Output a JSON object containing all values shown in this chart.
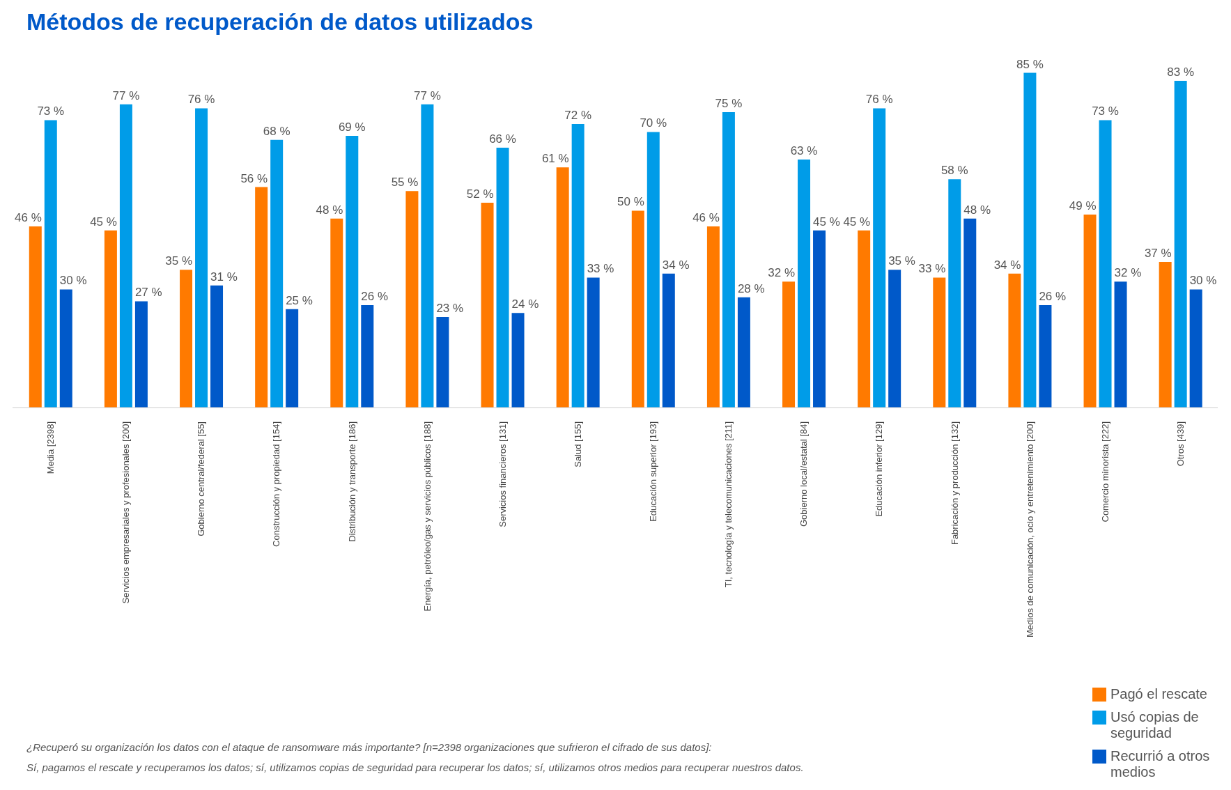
{
  "chart_data": {
    "type": "bar",
    "title": "Métodos de recuperación de datos utilizados",
    "categories": [
      "Media [2398]",
      "Servicios empresariales y profesionales [200]",
      "Gobierno central/federal [55]",
      "Construcción y propiedad [154]",
      "Distribución y transporte [186]",
      "Energía, petróleo/gas y servicios públicos [188]",
      "Servicios financieros [131]",
      "Salud [155]",
      "Educación superior [193]",
      "TI, tecnología y telecomunicaciones [211]",
      "Gobierno local/estatal [84]",
      "Educación inferior [129]",
      "Fabricación y producción [132]",
      "Medios de comunicación, ocio y entretenimiento [200]",
      "Comercio minorista [222]",
      "Otros [439]"
    ],
    "series": [
      {
        "name": "Pagó el rescate",
        "color": "#ff7a00",
        "values": [
          46,
          45,
          35,
          56,
          48,
          55,
          52,
          61,
          50,
          46,
          32,
          45,
          33,
          34,
          49,
          37
        ],
        "value_labels": [
          "46 %",
          "45 %",
          "35 %",
          "56 %",
          "48 %",
          "55 %",
          "52 %",
          "61 %",
          "50 %",
          "46 %",
          "32 %",
          "45 %",
          "33 %",
          "34 %",
          "49 %",
          "37 %"
        ]
      },
      {
        "name": "Usó copias de seguridad",
        "color": "#009ce8",
        "values": [
          73,
          77,
          76,
          68,
          69,
          77,
          66,
          72,
          70,
          75,
          63,
          76,
          58,
          85,
          73,
          83
        ],
        "value_labels": [
          "73 %",
          "77 %",
          "76 %",
          "68 %",
          "69 %",
          "77 %",
          "66 %",
          "72 %",
          "70 %",
          "75 %",
          "63 %",
          "76 %",
          "58 %",
          "85 %",
          "73 %",
          "83 %"
        ]
      },
      {
        "name": "Recurrió a otros medios",
        "color": "#0059c9",
        "values": [
          30,
          27,
          31,
          25,
          26,
          23,
          24,
          33,
          34,
          28,
          45,
          35,
          48,
          26,
          32,
          30
        ],
        "value_labels": [
          "30 %",
          "27 %",
          "31 %",
          "25 %",
          "26 %",
          "23 %",
          "24 %",
          "33 %",
          "34 %",
          "28 %",
          "45 %",
          "35 %",
          "48 %",
          "26 %",
          "32 %",
          "30 %"
        ]
      }
    ],
    "legend": "bottom right",
    "annotations": [
      "¿Recuperó su organización los datos con el ataque de ransomware más importante? [n=2398 organizaciones que sufrieron el cifrado de sus datos]:",
      "Sí, pagamos el rescate y recuperamos los datos; sí, utilizamos copias de seguridad para recuperar los datos; sí, utilizamos otros medios para recuperar nuestros datos."
    ]
  }
}
